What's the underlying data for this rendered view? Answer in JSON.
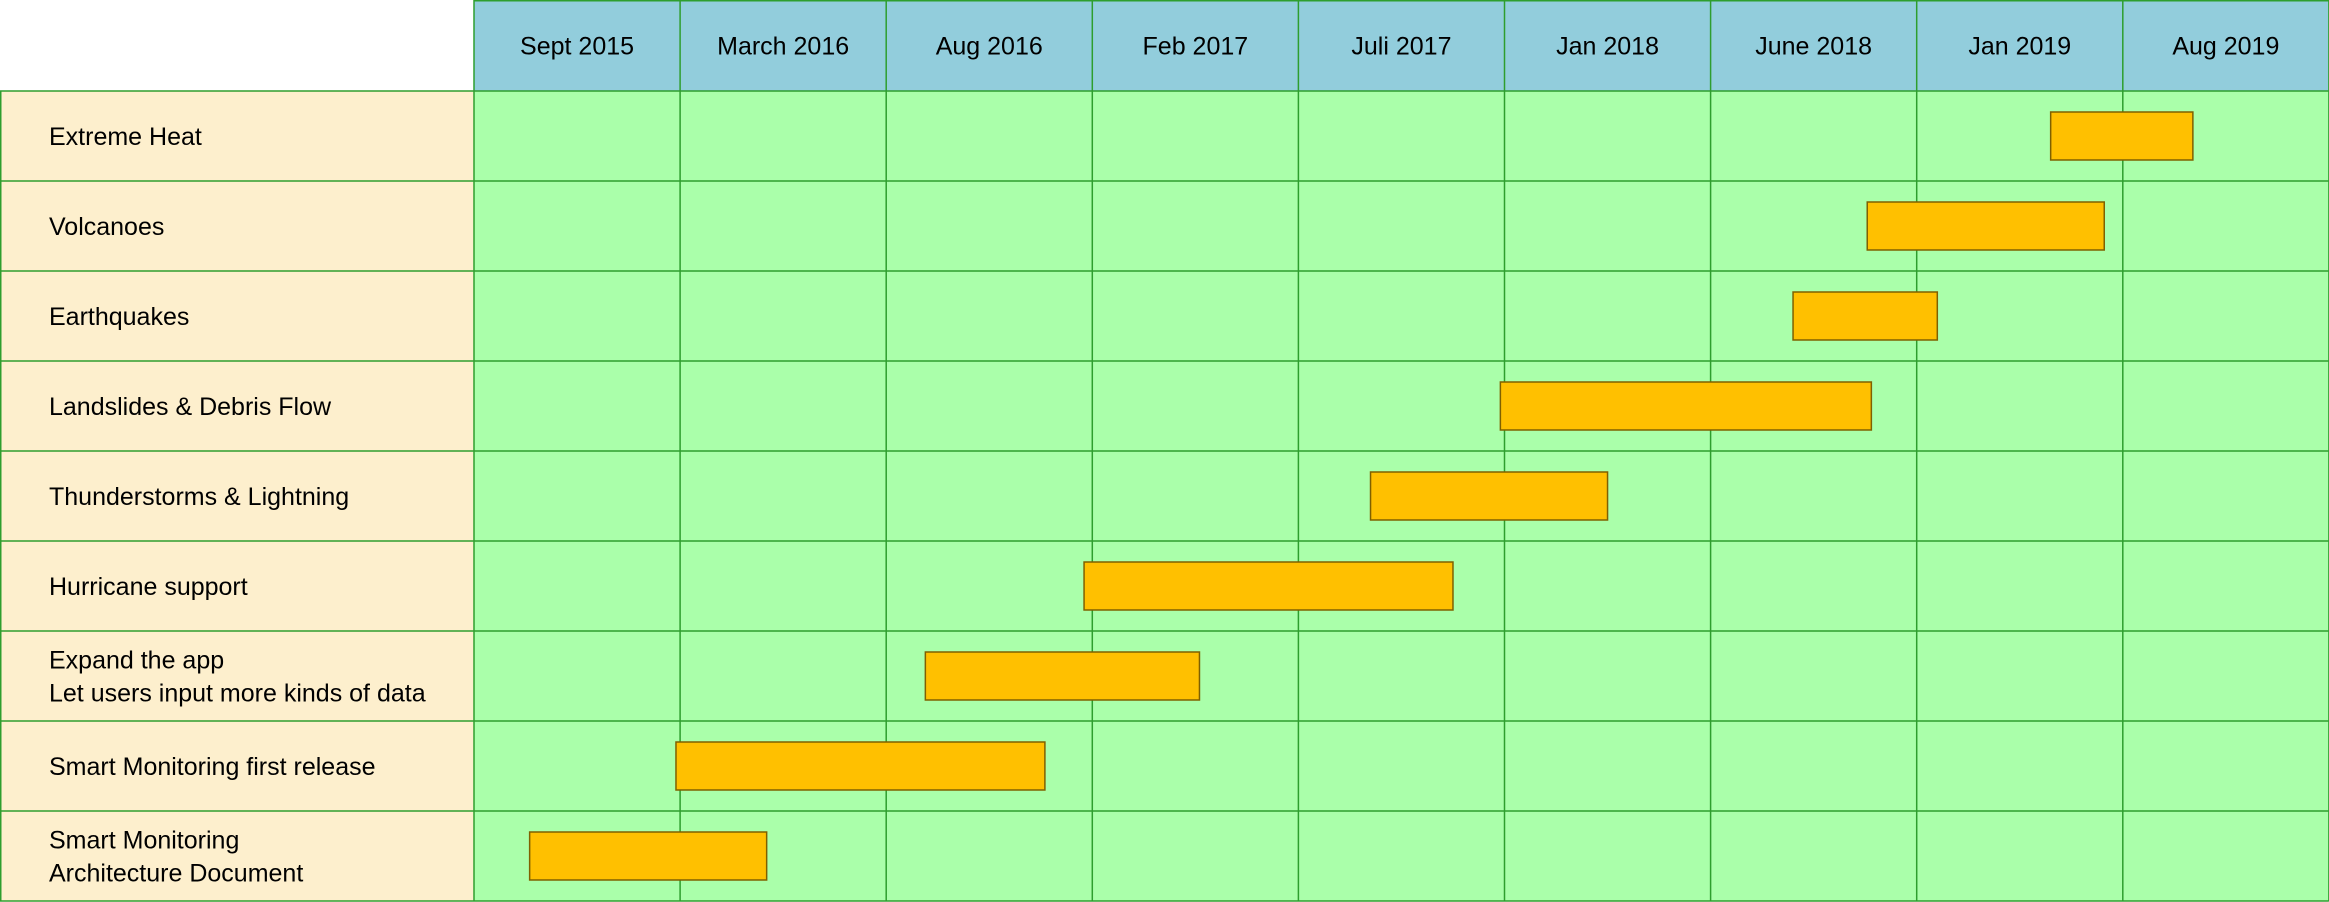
{
  "chart_data": {
    "type": "gantt",
    "columns": [
      "Sept 2015",
      "March  2016",
      "Aug  2016",
      "Feb 2017",
      "Juli 2017",
      "Jan 2018",
      "June 2018",
      "Jan 2019",
      "Aug 2019"
    ],
    "tasks": [
      {
        "label": [
          "Extreme Heat"
        ],
        "start": 7.65,
        "end": 8.34
      },
      {
        "label": [
          "Volcanoes"
        ],
        "start": 6.76,
        "end": 7.91
      },
      {
        "label": [
          "Earthquakes"
        ],
        "start": 6.4,
        "end": 7.1
      },
      {
        "label": [
          "Landslides & Debris Flow"
        ],
        "start": 4.98,
        "end": 6.78
      },
      {
        "label": [
          "Thunderstorms & Lightning"
        ],
        "start": 4.35,
        "end": 5.5
      },
      {
        "label": [
          "Hurricane support"
        ],
        "start": 2.96,
        "end": 4.75
      },
      {
        "label": [
          "Expand the app",
          "Let users input more kinds of data"
        ],
        "start": 2.19,
        "end": 3.52
      },
      {
        "label": [
          "Smart Monitoring first release"
        ],
        "start": 0.98,
        "end": 2.77
      },
      {
        "label": [
          "Smart Monitoring",
          "Architecture Document"
        ],
        "start": 0.27,
        "end": 1.42
      }
    ],
    "colors": {
      "header_bg": "#92cddc",
      "label_bg": "#fdefcd",
      "grid_bg": "#aaffaa",
      "grid_line": "#2e9e2e",
      "bar_fill": "#ffc000",
      "bar_stroke": "#7f6000"
    }
  }
}
